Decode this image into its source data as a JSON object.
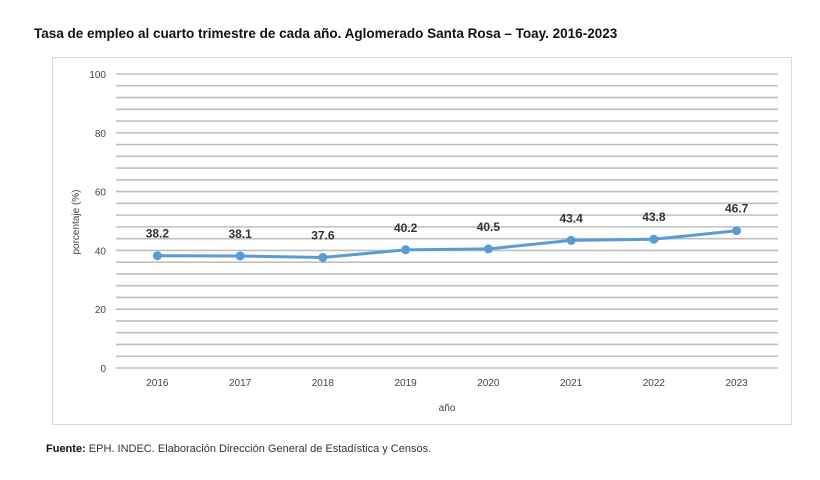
{
  "chart_data": {
    "type": "line",
    "title": "Tasa de empleo al cuarto trimestre de cada año. Aglomerado Santa Rosa – Toay. 2016-2023",
    "xlabel": "año",
    "ylabel": "porcentaje (%)",
    "ylim": [
      0,
      100
    ],
    "yticks": [
      0,
      20,
      40,
      60,
      80,
      100
    ],
    "minor_grid_step": 4,
    "grid": true,
    "categories": [
      "2016",
      "2017",
      "2018",
      "2019",
      "2020",
      "2021",
      "2022",
      "2023"
    ],
    "series": [
      {
        "name": "Tasa de empleo",
        "values": [
          38.2,
          38.1,
          37.6,
          40.2,
          40.5,
          43.4,
          43.8,
          46.7
        ],
        "color": "#5b9bd5"
      }
    ],
    "data_labels": [
      "38.2",
      "38.1",
      "37.6",
      "40.2",
      "40.5",
      "43.4",
      "43.8",
      "46.7"
    ]
  },
  "source": {
    "label": "Fuente:",
    "text": " EPH. INDEC. Elaboración Dirección General de Estadística y Censos."
  }
}
